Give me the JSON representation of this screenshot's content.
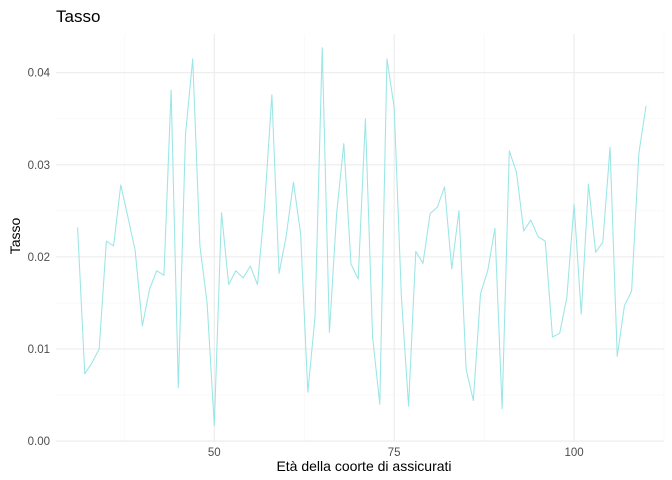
{
  "chart_data": {
    "type": "line",
    "title": "Tasso",
    "xlabel": "Età della coorte di assicurati",
    "ylabel": "Tasso",
    "xlim": [
      28,
      112.5
    ],
    "ylim": [
      -0.0001,
      0.0442
    ],
    "x_ticks": [
      50,
      75,
      100
    ],
    "y_ticks": [
      0.0,
      0.01,
      0.02,
      0.03,
      0.04
    ],
    "x_tick_labels": [
      "50",
      "75",
      "100"
    ],
    "y_tick_labels": [
      "0.00",
      "0.01",
      "0.02",
      "0.03",
      "0.04"
    ],
    "grid": true,
    "line_color": "#9be6e6",
    "series": [
      {
        "x": [
          31,
          32,
          33,
          34,
          35,
          36,
          37,
          38,
          39,
          40,
          41,
          42,
          43,
          44,
          45,
          46,
          47,
          48,
          49,
          50,
          51,
          52,
          53,
          54,
          55,
          56,
          57,
          58,
          59,
          60,
          61,
          62,
          63,
          64,
          65,
          66,
          67,
          68,
          69,
          70,
          71,
          72,
          73,
          74,
          75,
          76,
          77,
          78,
          79,
          80,
          81,
          82,
          83,
          84,
          85,
          86,
          87,
          88,
          89,
          90,
          91,
          92,
          93,
          94,
          95,
          96,
          97,
          98,
          99,
          100,
          101,
          102,
          103,
          104,
          105,
          106,
          107,
          108,
          109,
          110
        ],
        "values": [
          0.0232,
          0.0073,
          0.0085,
          0.01,
          0.0217,
          0.0212,
          0.0278,
          0.0243,
          0.0207,
          0.0125,
          0.0165,
          0.0185,
          0.018,
          0.0381,
          0.0058,
          0.0333,
          0.0415,
          0.0212,
          0.015,
          0.0017,
          0.0248,
          0.017,
          0.0185,
          0.0177,
          0.019,
          0.017,
          0.0256,
          0.0376,
          0.0182,
          0.0223,
          0.0281,
          0.0225,
          0.0053,
          0.0135,
          0.0427,
          0.0118,
          0.0247,
          0.0323,
          0.0192,
          0.0176,
          0.035,
          0.0113,
          0.004,
          0.0415,
          0.0362,
          0.0157,
          0.0038,
          0.0206,
          0.0193,
          0.0247,
          0.0254,
          0.0276,
          0.0187,
          0.025,
          0.0078,
          0.0044,
          0.016,
          0.0185,
          0.0231,
          0.0035,
          0.0315,
          0.0292,
          0.0228,
          0.024,
          0.0222,
          0.0217,
          0.0113,
          0.0117,
          0.0156,
          0.0257,
          0.0138,
          0.0279,
          0.0205,
          0.0216,
          0.0319,
          0.0092,
          0.0147,
          0.0163,
          0.0312,
          0.0364
        ]
      }
    ]
  }
}
